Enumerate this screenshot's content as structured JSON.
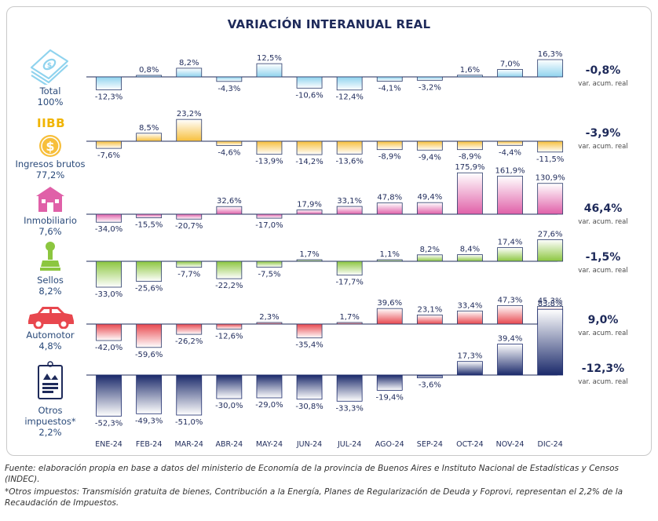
{
  "colors": {
    "total": "#8fd3ee",
    "iibb": "#f7bf3b",
    "inmobiliario": "#e060a8",
    "sellos": "#8cc63f",
    "automotor": "#e8474e",
    "otros": "#1b2a6b",
    "title": "#1e2a5a",
    "iibb_text": "#f0b400"
  },
  "chart_data": {
    "type": "bar",
    "title": "VARIACIÓN INTERANUAL REAL",
    "categories": [
      "ENE-24",
      "FEB-24",
      "MAR-24",
      "ABR-24",
      "MAY-24",
      "JUN-24",
      "JUL-24",
      "AGO-24",
      "SEP-24",
      "OCT-24",
      "NOV-24",
      "DIC-24"
    ],
    "series": [
      {
        "name": "Total",
        "share": "100%",
        "icon": "money-stack-icon",
        "values": [
          -12.3,
          0.8,
          8.2,
          -4.3,
          12.5,
          -10.6,
          -12.4,
          -4.1,
          -3.2,
          1.6,
          7.0,
          16.3
        ],
        "labels": [
          "-12,3%",
          "0,8%",
          "8,2%",
          "-4,3%",
          "12,5%",
          "-10,6%",
          "-12,4%",
          "-4,1%",
          "-3,2%",
          "1,6%",
          "7,0%",
          "16,3%"
        ],
        "accum": "-0,8%",
        "accum_label": "var. acum. real"
      },
      {
        "name": "Ingresos brutos",
        "share": "77,2%",
        "icon_text": "IIBB",
        "icon": "coin-dollar-icon",
        "values": [
          -7.6,
          8.5,
          23.2,
          -4.6,
          -13.9,
          -14.2,
          -13.6,
          -8.9,
          -9.4,
          -8.9,
          -4.4,
          -11.5
        ],
        "labels": [
          "-7,6%",
          "8,5%",
          "23,2%",
          "-4,6%",
          "-13,9%",
          "-14,2%",
          "-13,6%",
          "-8,9%",
          "-9,4%",
          "-8,9%",
          "-4,4%",
          "-11,5%"
        ],
        "accum": "-3,9%",
        "accum_label": "var. acum. real"
      },
      {
        "name": "Inmobiliario",
        "share": "7,6%",
        "icon": "house-icon",
        "values": [
          -34.0,
          -15.5,
          -20.7,
          32.6,
          -17.0,
          17.9,
          33.1,
          47.8,
          49.4,
          175.9,
          161.9,
          130.9
        ],
        "labels": [
          "-34,0%",
          "-15,5%",
          "-20,7%",
          "32,6%",
          "-17,0%",
          "17,9%",
          "33,1%",
          "47,8%",
          "49,4%",
          "175,9%",
          "161,9%",
          "130,9%"
        ],
        "accum": "46,4%",
        "accum_label": "var. acum. real"
      },
      {
        "name": "Sellos",
        "share": "8,2%",
        "icon": "stamp-icon",
        "values": [
          -33.0,
          -25.6,
          -7.7,
          -22.2,
          -7.5,
          1.7,
          -17.7,
          1.1,
          8.2,
          8.4,
          17.4,
          27.6
        ],
        "labels": [
          "-33,0%",
          "-25,6%",
          "-7,7%",
          "-22,2%",
          "-7,5%",
          "1,7%",
          "-17,7%",
          "1,1%",
          "8,2%",
          "8,4%",
          "17,4%",
          "27,6%"
        ],
        "accum": "-1,5%",
        "accum_label": "var. acum. real"
      },
      {
        "name": "Automotor",
        "share": "4,8%",
        "icon": "car-icon",
        "values": [
          -42.0,
          -59.6,
          -26.2,
          -12.6,
          2.3,
          -35.4,
          1.7,
          39.6,
          23.1,
          33.4,
          47.3,
          45.3
        ],
        "labels": [
          "-42,0%",
          "-59,6%",
          "-26,2%",
          "-12,6%",
          "2,3%",
          "-35,4%",
          "1,7%",
          "39,6%",
          "23,1%",
          "33,4%",
          "47,3%",
          "45,3%"
        ],
        "accum": "9,0%",
        "accum_label": "var. acum. real"
      },
      {
        "name": "Otros impuestos*",
        "share": "2,2%",
        "icon": "document-icon",
        "values": [
          -52.3,
          -49.3,
          -51.0,
          -30.0,
          -29.0,
          -30.8,
          -33.3,
          -19.4,
          -3.6,
          17.3,
          39.4,
          83.8
        ],
        "labels": [
          "-52,3%",
          "-49,3%",
          "-51,0%",
          "-30,0%",
          "-29,0%",
          "-30,8%",
          "-33,3%",
          "-19,4%",
          "-3,6%",
          "17,3%",
          "39,4%",
          "83,8%"
        ],
        "accum": "-12,3%",
        "accum_label": "var. acum. real"
      }
    ]
  },
  "footnote": {
    "source": "Fuente: elaboración propia en base a datos del ministerio de Economía de la provincia de Buenos Aires e Instituto Nacional de Estadísticas y Censos (INDEC).",
    "note": "*Otros impuestos: Transmisión gratuita de bienes, Contribución a la Energía, Planes de Regularización de Deuda y Foprovi, representan el 2,2% de la Recaudación de Impuestos."
  }
}
